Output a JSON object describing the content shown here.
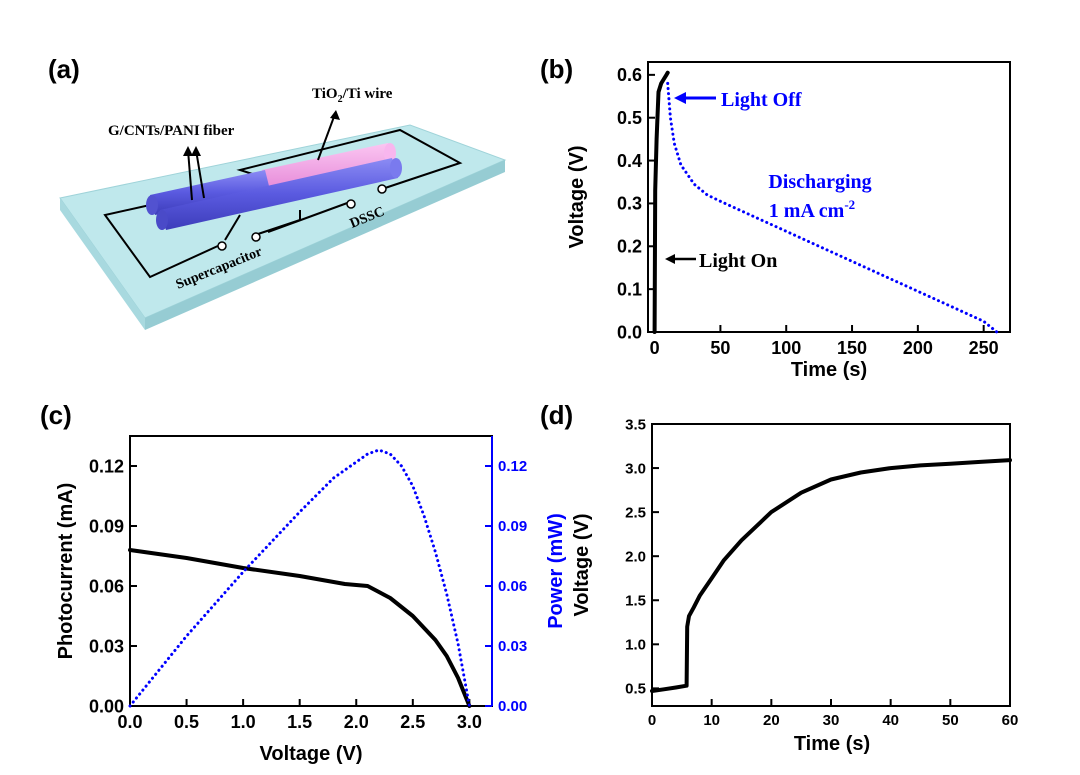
{
  "panels": {
    "a": "(a)",
    "b": "(b)",
    "c": "(c)",
    "d": "(d)"
  },
  "schematic": {
    "tio2_label": {
      "main": "TiO",
      "sub": "2",
      "rest": "/Ti wire"
    },
    "fiber_label": "G/CNTs/PANI fiber",
    "supercap_label": "Supercapacitor",
    "dssc_label": "DSSC",
    "colors": {
      "plate": "#bfe8ec",
      "fiber": "#6f6fe8",
      "tio2_wire": "#f5a8e8",
      "circuit": "#000000"
    }
  },
  "chart_data": [
    {
      "id": "b",
      "type": "line",
      "xlabel": "Time (s)",
      "ylabel": "Voltage (V)",
      "xlim": [
        -5,
        270
      ],
      "ylim": [
        0.0,
        0.63
      ],
      "xticks": [
        0,
        50,
        100,
        150,
        200,
        250
      ],
      "yticks": [
        "0.0",
        "0.1",
        "0.2",
        "0.3",
        "0.4",
        "0.5",
        "0.6"
      ],
      "series": [
        {
          "style": "solid",
          "color": "#000000",
          "x": [
            0,
            0.5,
            1.5,
            3,
            5,
            7,
            9,
            10
          ],
          "y": [
            0.0,
            0.33,
            0.45,
            0.56,
            0.58,
            0.59,
            0.6,
            0.605
          ]
        },
        {
          "style": "dotted",
          "color": "#0000ff",
          "x": [
            10,
            12,
            15,
            20,
            30,
            40,
            50,
            75,
            100,
            125,
            150,
            175,
            200,
            225,
            250,
            260
          ],
          "y": [
            0.58,
            0.5,
            0.44,
            0.39,
            0.345,
            0.32,
            0.305,
            0.27,
            0.235,
            0.2,
            0.165,
            0.13,
            0.095,
            0.06,
            0.025,
            0.0
          ]
        }
      ],
      "annotations": [
        {
          "text": "Light Off",
          "color": "#0000ff"
        },
        {
          "text": "Light On",
          "color": "#000000"
        },
        {
          "text": "Discharging",
          "color": "#0000ff"
        },
        {
          "text": "1 mA cm",
          "sup": "-2",
          "color": "#0000ff"
        }
      ]
    },
    {
      "id": "c",
      "type": "line",
      "xlabel": "Voltage (V)",
      "ylabel": "Photocurrent (mA)",
      "y2label": "Power (mW)",
      "xlim": [
        0.0,
        3.2
      ],
      "ylim": [
        0.0,
        0.135
      ],
      "y2lim": [
        0.0,
        0.135
      ],
      "xticks": [
        "0.0",
        "0.5",
        "1.0",
        "1.5",
        "2.0",
        "2.5",
        "3.0"
      ],
      "yticks": [
        "0.00",
        "0.03",
        "0.06",
        "0.09",
        "0.12"
      ],
      "y2ticks": [
        "0.00",
        "0.03",
        "0.06",
        "0.09",
        "0.12"
      ],
      "series": [
        {
          "style": "solid",
          "color": "#000000",
          "axis": "left",
          "x": [
            0.0,
            0.5,
            1.0,
            1.5,
            1.9,
            2.1,
            2.3,
            2.5,
            2.7,
            2.8,
            2.9,
            3.0
          ],
          "y": [
            0.078,
            0.074,
            0.069,
            0.065,
            0.061,
            0.06,
            0.054,
            0.045,
            0.033,
            0.025,
            0.014,
            0.0
          ]
        },
        {
          "style": "dotted",
          "color": "#0000ff",
          "axis": "right",
          "x": [
            0.0,
            0.5,
            1.0,
            1.5,
            1.8,
            2.0,
            2.1,
            2.2,
            2.3,
            2.4,
            2.5,
            2.6,
            2.7,
            2.8,
            2.9,
            3.0
          ],
          "y": [
            0.0,
            0.035,
            0.067,
            0.097,
            0.114,
            0.122,
            0.126,
            0.128,
            0.126,
            0.12,
            0.11,
            0.095,
            0.077,
            0.056,
            0.031,
            0.0
          ]
        }
      ]
    },
    {
      "id": "d",
      "type": "line",
      "xlabel": "Time (s)",
      "ylabel": "Voltage (V)",
      "xlim": [
        0,
        60
      ],
      "ylim": [
        0.3,
        3.5
      ],
      "xticks": [
        0,
        10,
        20,
        30,
        40,
        50,
        60
      ],
      "yticks": [
        "0.5",
        "1.0",
        "1.5",
        "2.0",
        "2.5",
        "3.0",
        "3.5"
      ],
      "series": [
        {
          "style": "solid",
          "color": "#000000",
          "x": [
            0,
            2,
            4,
            5.8,
            5.9,
            6.2,
            7,
            8,
            10,
            12,
            15,
            20,
            25,
            30,
            35,
            40,
            45,
            50,
            55,
            60
          ],
          "y": [
            0.47,
            0.49,
            0.51,
            0.53,
            1.2,
            1.32,
            1.42,
            1.55,
            1.75,
            1.95,
            2.18,
            2.5,
            2.72,
            2.87,
            2.95,
            3.0,
            3.03,
            3.05,
            3.07,
            3.09
          ]
        }
      ]
    }
  ]
}
